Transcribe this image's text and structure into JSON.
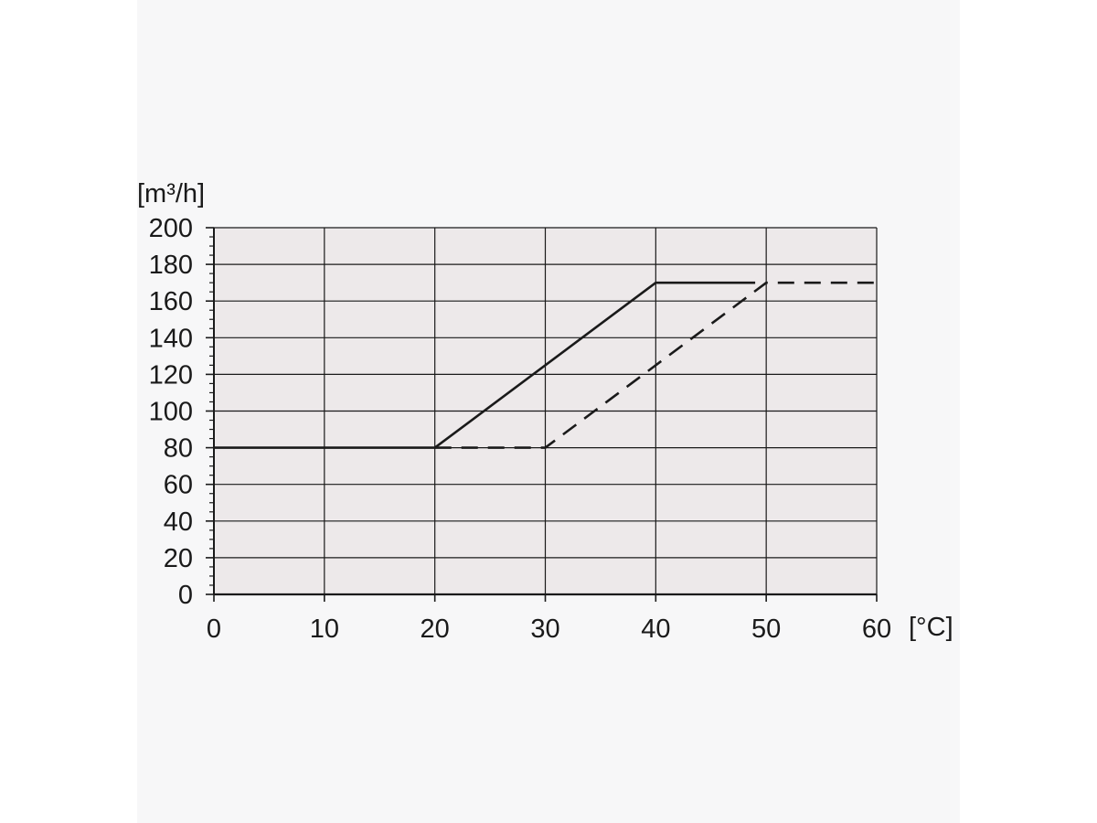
{
  "chart_data": {
    "type": "line",
    "title": "",
    "xlabel": "[°C]",
    "ylabel": "[m³/h]",
    "xlim": [
      0,
      60
    ],
    "ylim": [
      0,
      200
    ],
    "x_ticks": [
      "0",
      "10",
      "20",
      "30",
      "40",
      "50",
      "60"
    ],
    "y_ticks": [
      "0",
      "20",
      "40",
      "60",
      "80",
      "100",
      "120",
      "140",
      "160",
      "180",
      "200"
    ],
    "grid": true,
    "legend": "none",
    "series": [
      {
        "line_style": "solid",
        "x": [
          0,
          20,
          40,
          49
        ],
        "y": [
          80,
          80,
          170,
          170
        ]
      },
      {
        "line_style": "dashed",
        "x": [
          20,
          30,
          50,
          60
        ],
        "y": [
          80,
          80,
          170,
          170
        ]
      }
    ],
    "colors": {
      "plot_background": "#ede9ea",
      "grid": "#1a1a1a",
      "line": "#1a1a1a"
    }
  }
}
